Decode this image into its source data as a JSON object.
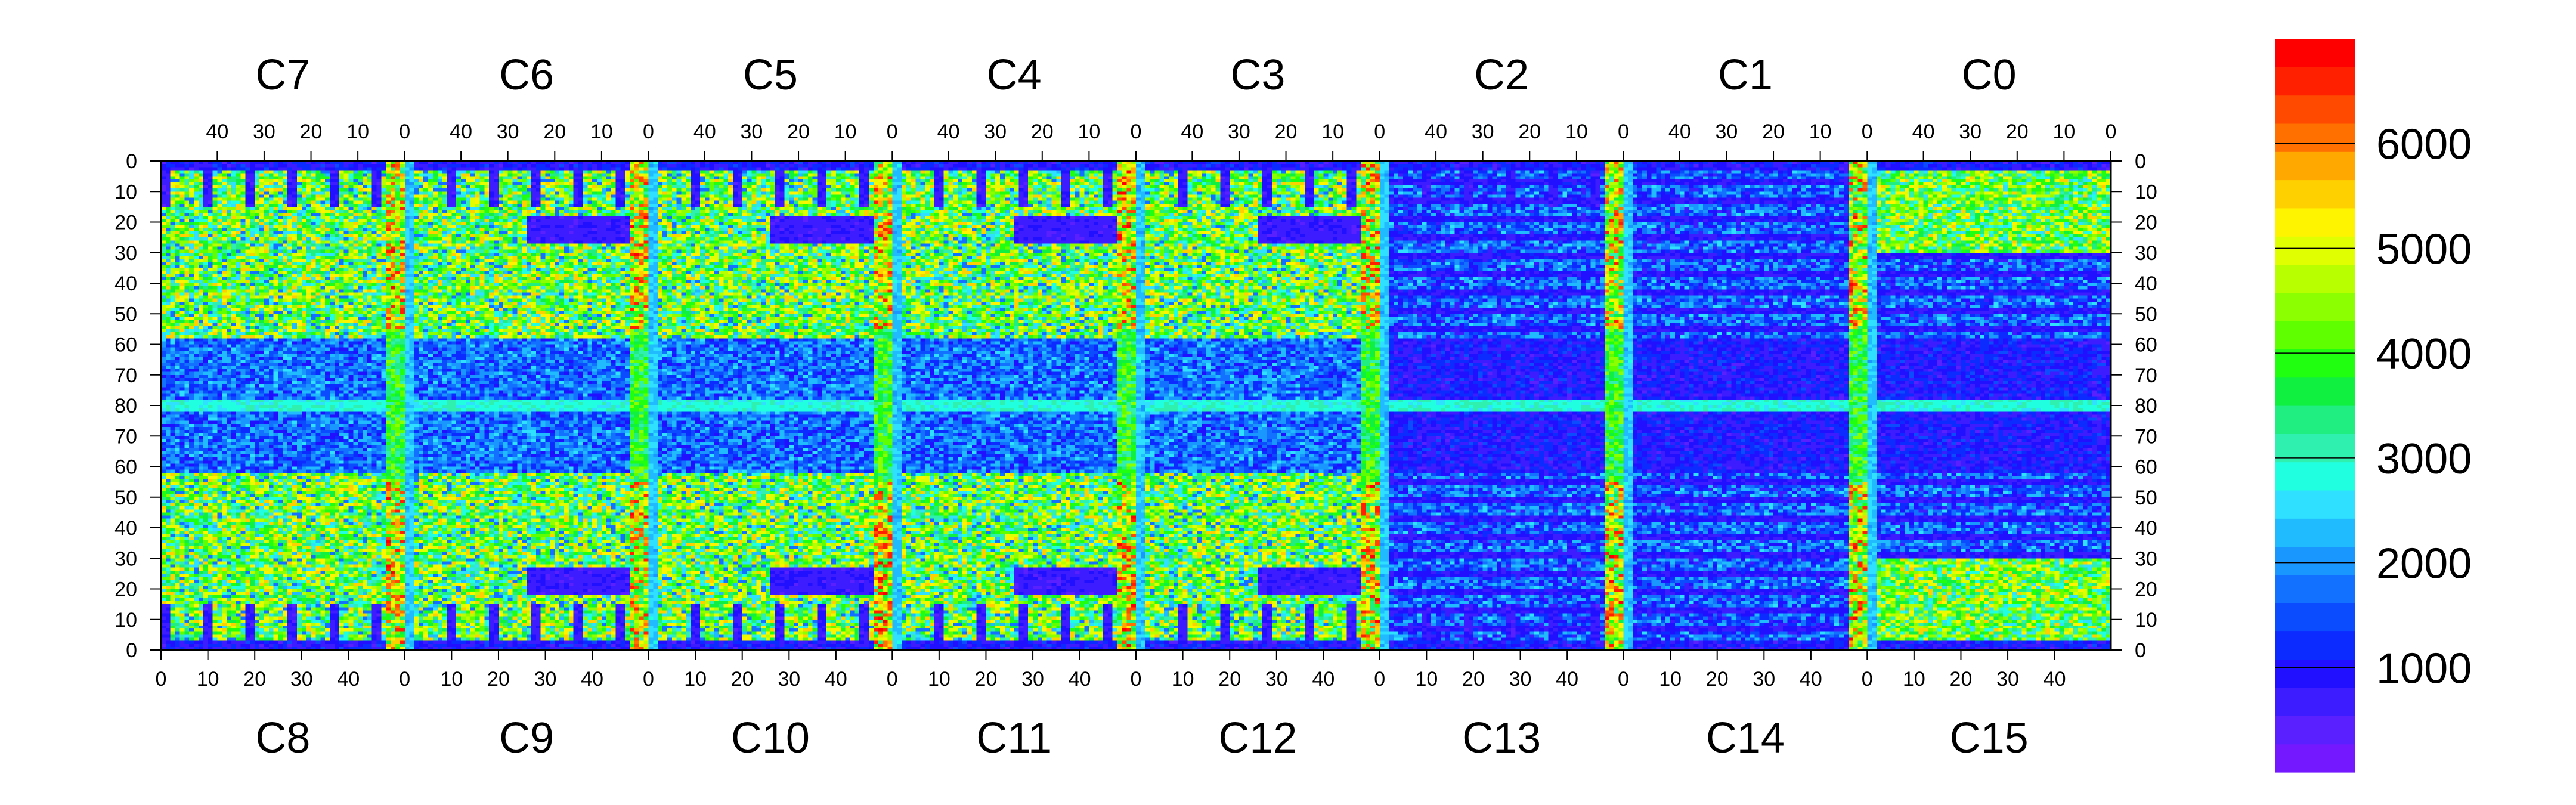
{
  "chart_data": {
    "type": "heatmap",
    "title": "",
    "xlabel": "",
    "ylabel": "",
    "chips_top": [
      "C7",
      "C6",
      "C5",
      "C4",
      "C3",
      "C2",
      "C1",
      "C0"
    ],
    "chips_bottom": [
      "C8",
      "C9",
      "C10",
      "C11",
      "C12",
      "C13",
      "C14",
      "C15"
    ],
    "x_ticks_top": [
      "40",
      "30",
      "20",
      "10",
      "0"
    ],
    "x_ticks_bottom": [
      "0",
      "10",
      "20",
      "30",
      "40"
    ],
    "y_ticks": [
      "0",
      "10",
      "20",
      "30",
      "40",
      "50",
      "60",
      "70",
      "80",
      "70",
      "60",
      "50",
      "40",
      "30",
      "20",
      "10",
      "0"
    ],
    "chip_columns": 52,
    "rows_per_half": 80,
    "colorbar": {
      "ticks": [
        "1000",
        "2000",
        "3000",
        "4000",
        "5000",
        "6000"
      ],
      "tick_values": [
        1000,
        2000,
        3000,
        4000,
        5000,
        6000
      ],
      "zmin": 0,
      "zmax": 7000,
      "colors": [
        "#7318ff",
        "#5a20ff",
        "#3d1cff",
        "#2010ff",
        "#0c2cff",
        "#0c4cff",
        "#1272ff",
        "#1a96ff",
        "#20baff",
        "#30e0ff",
        "#20ffe0",
        "#30f0b0",
        "#20ee80",
        "#10f040",
        "#20ff10",
        "#60ff00",
        "#8cff00",
        "#b8ff00",
        "#e0ff00",
        "#fff400",
        "#ffd000",
        "#ffa800",
        "#ff7000",
        "#ff4a00",
        "#ff2000",
        "#ff0000"
      ]
    }
  }
}
